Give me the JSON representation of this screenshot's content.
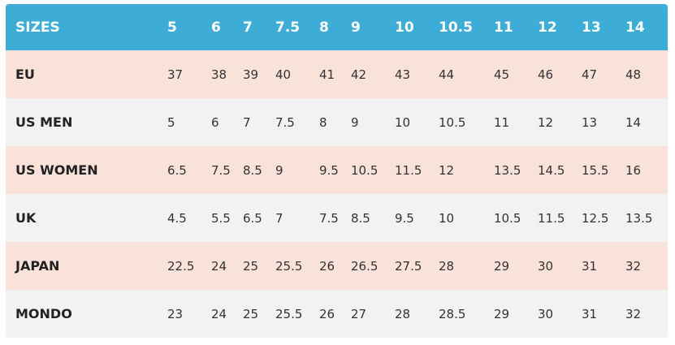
{
  "table": {
    "header": [
      "SIZES",
      "5",
      "6",
      "7",
      "7.5",
      "8",
      "9",
      "10",
      "10.5",
      "11",
      "12",
      "13",
      "14"
    ],
    "rows": [
      [
        "EU",
        "37",
        "38",
        "39",
        "40",
        "41",
        "42",
        "43",
        "44",
        "45",
        "46",
        "47",
        "48"
      ],
      [
        "US MEN",
        "5",
        "6",
        "7",
        "7.5",
        "8",
        "9",
        "10",
        "10.5",
        "11",
        "12",
        "13",
        "14"
      ],
      [
        "US WOMEN",
        "6.5",
        "7.5",
        "8.5",
        "9",
        "9.5",
        "10.5",
        "11.5",
        "12",
        "13.5",
        "14.5",
        "15.5",
        "16"
      ],
      [
        "UK",
        "4.5",
        "5.5",
        "6.5",
        "7",
        "7.5",
        "8.5",
        "9.5",
        "10",
        "10.5",
        "11.5",
        "12.5",
        "13.5"
      ],
      [
        "JAPAN",
        "22.5",
        "24",
        "25",
        "25.5",
        "26",
        "26.5",
        "27.5",
        "28",
        "29",
        "30",
        "31",
        "32"
      ],
      [
        "MONDO",
        "23",
        "24",
        "25",
        "25.5",
        "26",
        "27",
        "28",
        "28.5",
        "29",
        "30",
        "31",
        "32"
      ]
    ]
  }
}
